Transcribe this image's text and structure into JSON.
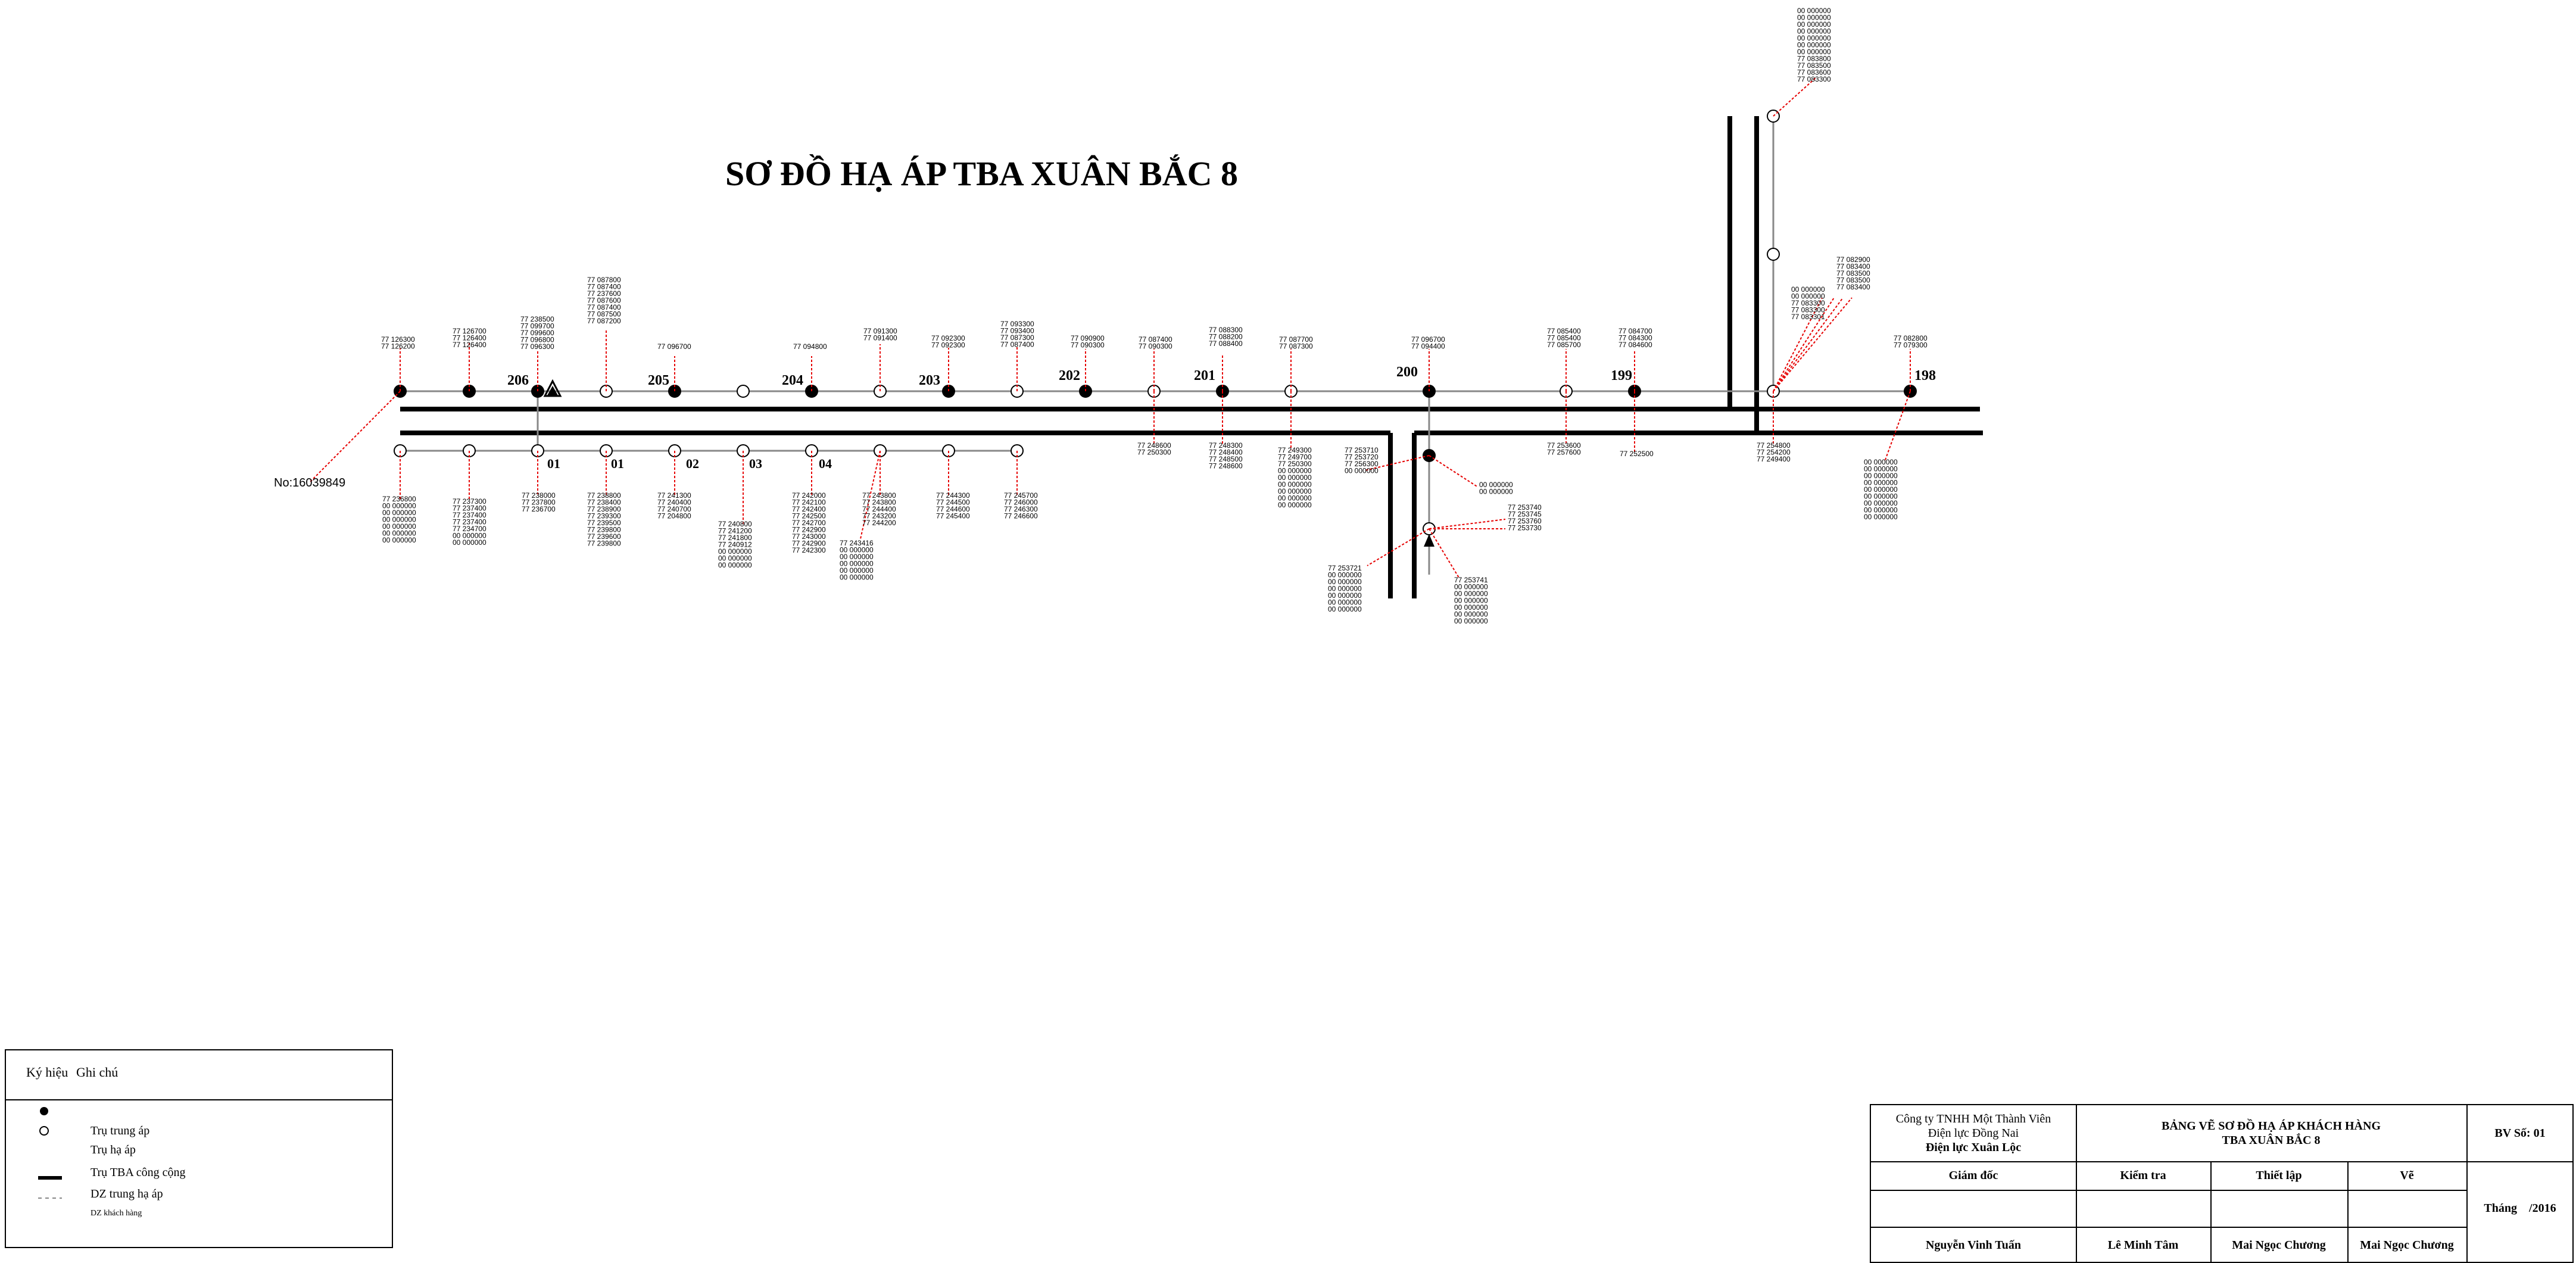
{
  "title": "SƠ ĐỒ HẠ ÁP TBA XUÂN BẮC 8",
  "meter_no": "No:16039849",
  "pole_labels_top": [
    "206",
    "205",
    "204",
    "203",
    "202",
    "201",
    "200",
    "199",
    "198"
  ],
  "pole_labels_bottom": [
    "01",
    "01",
    "02",
    "03",
    "04"
  ],
  "customer_groups": {
    "g1": [
      "77 126300",
      "77 126200"
    ],
    "g2": [
      "77 126700",
      "77 126400",
      "77 126400"
    ],
    "g3": [
      "77 238500",
      "77 099700",
      "77 099600",
      "77 096800",
      "77 096300"
    ],
    "g4": [
      "77 087800",
      "77 087400",
      "77 237600",
      "77 087600",
      "77 087400",
      "77 087500",
      "77 087200"
    ],
    "g5": [
      "77 096700"
    ],
    "g6": [
      "77 094800"
    ],
    "g7": [
      "77 091300",
      "77 091400"
    ],
    "g8": [
      "77 092300",
      "77 092300"
    ],
    "g9": [
      "77 093300",
      "77 093400",
      "77 087300",
      "77 087400"
    ],
    "g10": [
      "77 090900",
      "77 090300"
    ],
    "g11": [
      "77 087400",
      "77 090300"
    ],
    "g12": [
      "77 088300",
      "77 088200",
      "77 088400"
    ],
    "g13": [
      "77 087700",
      "77 087300"
    ],
    "g14": [
      "77 096700",
      "77 094400"
    ],
    "g15": [
      "77 085400",
      "77 085400",
      "77 085700"
    ],
    "g16": [
      "77 084700",
      "77 084300",
      "77 084600"
    ],
    "g17": [
      "00 000000",
      "00 000000",
      "00 000000",
      "00 000000",
      "00 000000",
      "00 000000",
      "00 000000",
      "77 083800",
      "77 083500",
      "77 083600",
      "77 083300"
    ],
    "g18": [
      "77 082900",
      "77 083400",
      "77 083500",
      "77 083500",
      "77 083400"
    ],
    "g19": [
      "00 000000",
      "00 000000",
      "77 083300",
      "77 083300",
      "77 083301"
    ],
    "g20": [
      "77 082800",
      "77 079300"
    ],
    "g21": [
      "77 236800",
      "00 000000",
      "00 000000",
      "00 000000",
      "00 000000",
      "00 000000",
      "00 000000"
    ],
    "g22": [
      "77 237300",
      "77 237400",
      "77 237400",
      "77 237400",
      "77 234700",
      "00 000000",
      "00 000000"
    ],
    "g23": [
      "77 238000",
      "77 237800",
      "77 236700"
    ],
    "g24": [
      "77 238800",
      "77 238400",
      "77 238900",
      "77 239300",
      "77 239500",
      "77 239800",
      "77 239600",
      "77 239800"
    ],
    "g25": [
      "77 241300",
      "77 240400",
      "77 240700",
      "77 204800"
    ],
    "g26": [
      "77 240800",
      "77 241200",
      "77 241800",
      "77 240912",
      "00 000000",
      "00 000000",
      "00 000000"
    ],
    "g27": [
      "77 242000",
      "77 242100",
      "77 242400",
      "77 242500",
      "77 242700",
      "77 242900",
      "77 243000",
      "77 242900",
      "77 242300"
    ],
    "g28": [
      "77 243800",
      "77 243800",
      "77 244400",
      "77 243200",
      "77 244200"
    ],
    "g29": [
      "77 243416",
      "00 000000",
      "00 000000",
      "00 000000",
      "00 000000",
      "00 000000"
    ],
    "g30": [
      "77 244300",
      "77 244500",
      "77 244600",
      "77 245400"
    ],
    "g31": [
      "77 245700",
      "77 246000",
      "77 246300",
      "77 246600"
    ],
    "g32": [
      "77 248600",
      "77 250300"
    ],
    "g33": [
      "77 248300",
      "77 248400",
      "77 248500",
      "77 248600"
    ],
    "g34": [
      "77 249300",
      "77 249700",
      "77 250300",
      "00 000000",
      "00 000000",
      "00 000000",
      "00 000000",
      "00 000000",
      "00 000000"
    ],
    "g35": [
      "77 253710",
      "77 253720",
      "77 256300",
      "00 000000"
    ],
    "g36": [
      "00 000000",
      "00 000000"
    ],
    "g37": [
      "77 253740",
      "77 253745",
      "77 253760",
      "77 253730"
    ],
    "g38": [
      "77 253721",
      "00 000000",
      "00 000000",
      "00 000000",
      "00 000000",
      "00 000000",
      "00 000000"
    ],
    "g39": [
      "77 253741",
      "00 000000",
      "00 000000",
      "00 000000",
      "00 000000",
      "00 000000",
      "00 000000"
    ],
    "g40": [
      "77 253600",
      "77 257600"
    ],
    "g41": [
      "77 252500"
    ],
    "g42": [
      "77 254800",
      "77 254200",
      "77 249400"
    ],
    "g43": [
      "00 000000",
      "00 000000",
      "00 000000",
      "00 000000",
      "00 000000",
      "00 000000",
      "00 000000",
      "00 000000",
      "00 000000"
    ]
  },
  "legend": {
    "header_symbol": "Ký hiệu",
    "header_note": "Ghi chú",
    "items": [
      "Trụ trung áp",
      "Trụ hạ áp",
      "Trụ TBA công cộng",
      "DZ trung hạ áp",
      "DZ khách hàng"
    ]
  },
  "title_block": {
    "company_1": "Công ty TNHH Một Thành Viên",
    "company_2": "Điện lực Đồng Nai",
    "company_3": "Điện lực Xuân Lộc",
    "drawing_title_1": "BẢNG VẼ SƠ ĐỒ HẠ ÁP KHÁCH HÀNG",
    "drawing_title_2": "TBA XUÂN BẮC 8",
    "sheet_no": "BV Số: 01",
    "role_director": "Giám đốc",
    "role_check": "Kiểm tra",
    "role_design": "Thiết lập",
    "role_draw": "Vẽ",
    "date": "Tháng    /2016",
    "name_director": "Nguyễn Vinh Tuấn",
    "name_check": "Lê Minh Tâm",
    "name_design": "Mai Ngọc Chương",
    "name_draw": "Mai Ngọc Chương"
  },
  "colors": {
    "line": "#000000",
    "feeder": "#888888",
    "service": "#e60000"
  }
}
